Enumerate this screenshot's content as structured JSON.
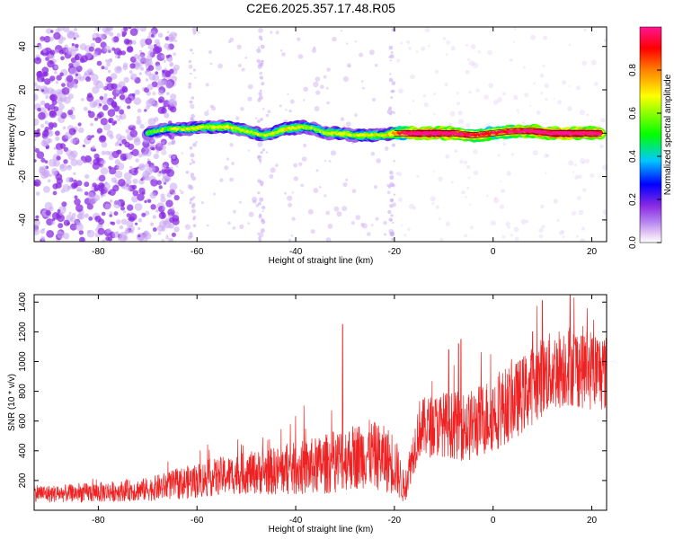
{
  "figure": {
    "title": "C2E6.2025.357.17.48.R05"
  },
  "chart_data": [
    {
      "type": "heatmap",
      "xlabel": "Height of straight line (km)",
      "ylabel": "Frequency (Hz)",
      "xlim": [
        -93,
        23
      ],
      "ylim": [
        -50,
        49
      ],
      "xticks": [
        -80,
        -60,
        -40,
        -20,
        0,
        20
      ],
      "yticks": [
        -40,
        -20,
        0,
        20,
        40
      ],
      "grid": false,
      "colorbar": {
        "label": "Normalized spectral amplitude",
        "ticks": [
          0.0,
          0.2,
          0.4,
          0.6,
          0.8
        ],
        "range": [
          0,
          1
        ],
        "colors": [
          "#ffffff",
          "#e6ccf5",
          "#b37ef0",
          "#8a2be2",
          "#0000ff",
          "#00c8ff",
          "#00ff00",
          "#ffff00",
          "#ff8000",
          "#ff0000",
          "#ff1493"
        ]
      },
      "ridge": {
        "x": [
          -70,
          -66,
          -62,
          -58,
          -54,
          -50,
          -46,
          -42,
          -38,
          -36,
          -34,
          -31,
          -28,
          -25,
          -22,
          -20,
          -16,
          -12,
          -8,
          -4,
          0,
          4,
          8,
          12,
          16,
          20,
          22
        ],
        "y": [
          0,
          2,
          2,
          3,
          3,
          1,
          -1,
          2,
          3,
          2,
          0,
          0,
          -1,
          -1,
          -1,
          0,
          0,
          0,
          0,
          -1,
          0,
          1,
          1,
          0,
          0,
          0,
          0
        ],
        "amplitude": [
          0.4,
          0.45,
          0.5,
          0.5,
          0.55,
          0.5,
          0.5,
          0.55,
          0.5,
          0.45,
          0.5,
          0.55,
          0.5,
          0.55,
          0.5,
          0.65,
          0.95,
          0.95,
          0.9,
          0.8,
          0.8,
          0.85,
          0.9,
          0.95,
          0.95,
          0.9,
          0.9
        ]
      },
      "noise_region_km": [
        -93,
        -70
      ]
    },
    {
      "type": "line",
      "xlabel": "Height of straight line (km)",
      "ylabel": "SNR (10 * v/v)",
      "xlim": [
        -93,
        23
      ],
      "ylim": [
        0,
        1450
      ],
      "xticks": [
        -80,
        -60,
        -40,
        -20,
        0,
        20
      ],
      "yticks": [
        200,
        400,
        600,
        800,
        1000,
        1200,
        1400
      ],
      "grid": false,
      "series": [
        {
          "color": "#ee2222",
          "x": [
            -93,
            -90,
            -85,
            -80,
            -75,
            -70,
            -65,
            -60,
            -55,
            -50,
            -45,
            -40,
            -35,
            -30,
            -25,
            -20,
            -18,
            -15,
            -10,
            -5,
            0,
            5,
            10,
            15,
            20,
            23
          ],
          "y": [
            120,
            110,
            115,
            120,
            130,
            140,
            170,
            200,
            230,
            250,
            260,
            280,
            300,
            350,
            380,
            320,
            140,
            550,
            580,
            560,
            650,
            750,
            900,
            980,
            950,
            920
          ],
          "spread": [
            60,
            60,
            60,
            70,
            70,
            80,
            100,
            120,
            130,
            140,
            160,
            180,
            200,
            220,
            230,
            220,
            100,
            200,
            220,
            240,
            260,
            260,
            270,
            280,
            280,
            260
          ]
        }
      ]
    }
  ]
}
